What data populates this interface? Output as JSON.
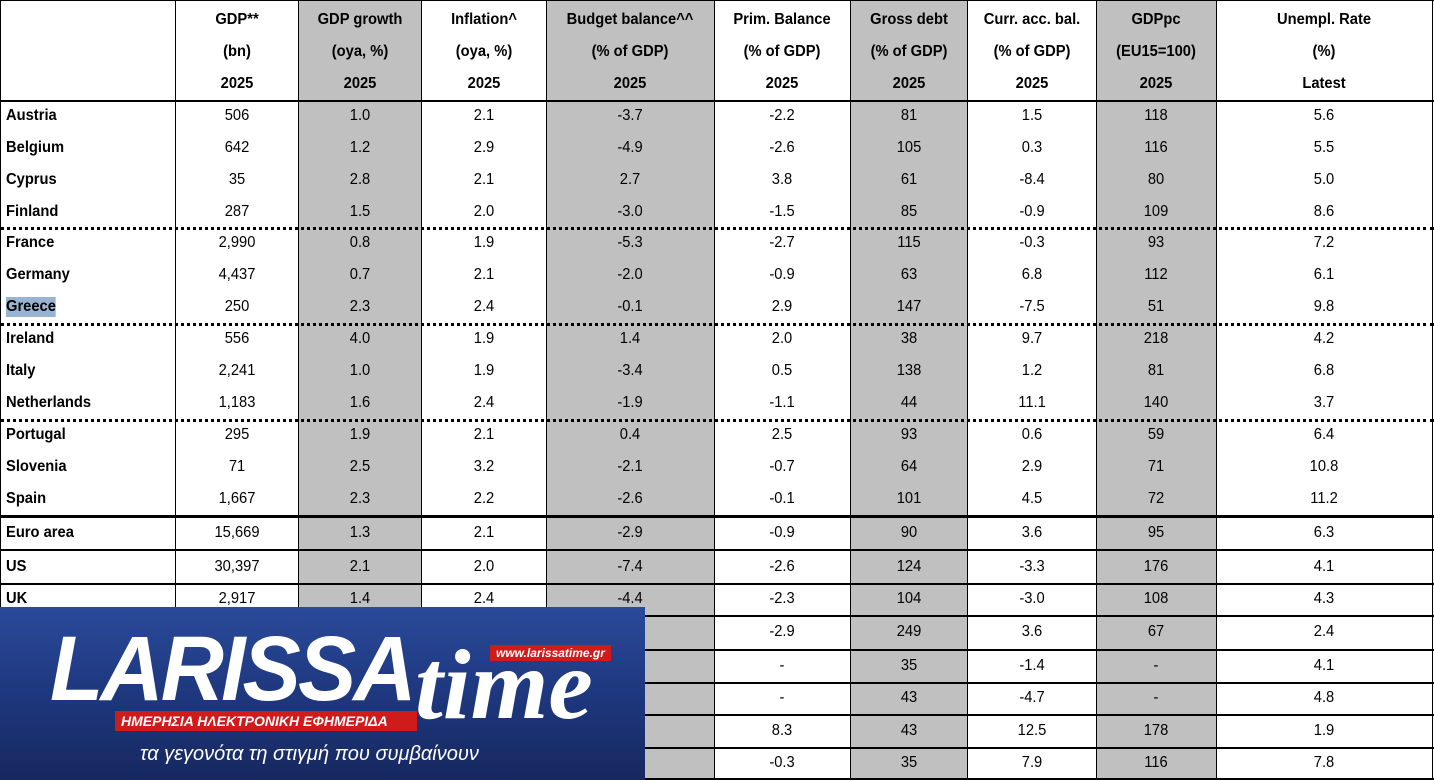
{
  "table": {
    "header": [
      [
        "",
        "GDP**",
        "GDP growth",
        "Inflation^",
        "Budget balance^^",
        "Prim. Balance",
        "Gross debt",
        "Curr. acc. bal.",
        "GDPpc",
        "Unempl. Rate"
      ],
      [
        "",
        "(bn)",
        "(oya, %)",
        "(oya, %)",
        "(% of GDP)",
        "(% of GDP)",
        "(% of GDP)",
        "(% of GDP)",
        "(EU15=100)",
        "(%)"
      ],
      [
        "",
        "2025",
        "2025",
        "2025",
        "2025",
        "2025",
        "2025",
        "2025",
        "2025",
        "Latest"
      ]
    ],
    "rows": [
      [
        "Austria",
        "506",
        "1.0",
        "2.1",
        "-3.7",
        "-2.2",
        "81",
        "1.5",
        "118",
        "5.6"
      ],
      [
        "Belgium",
        "642",
        "1.2",
        "2.9",
        "-4.9",
        "-2.6",
        "105",
        "0.3",
        "116",
        "5.5"
      ],
      [
        "Cyprus",
        "35",
        "2.8",
        "2.1",
        "2.7",
        "3.8",
        "61",
        "-8.4",
        "80",
        "5.0"
      ],
      [
        "Finland",
        "287",
        "1.5",
        "2.0",
        "-3.0",
        "-1.5",
        "85",
        "-0.9",
        "109",
        "8.6"
      ],
      [
        "France",
        "2,990",
        "0.8",
        "1.9",
        "-5.3",
        "-2.7",
        "115",
        "-0.3",
        "93",
        "7.2"
      ],
      [
        "Germany",
        "4,437",
        "0.7",
        "2.1",
        "-2.0",
        "-0.9",
        "63",
        "6.8",
        "112",
        "6.1"
      ],
      [
        "Greece",
        "250",
        "2.3",
        "2.4",
        "-0.1",
        "2.9",
        "147",
        "-7.5",
        "51",
        "9.8"
      ],
      [
        "Ireland",
        "556",
        "4.0",
        "1.9",
        "1.4",
        "2.0",
        "38",
        "9.7",
        "218",
        "4.2"
      ],
      [
        "Italy",
        "2,241",
        "1.0",
        "1.9",
        "-3.4",
        "0.5",
        "138",
        "1.2",
        "81",
        "6.8"
      ],
      [
        "Netherlands",
        "1,183",
        "1.6",
        "2.4",
        "-1.9",
        "-1.1",
        "44",
        "11.1",
        "140",
        "3.7"
      ],
      [
        "Portugal",
        "295",
        "1.9",
        "2.1",
        "0.4",
        "2.5",
        "93",
        "0.6",
        "59",
        "6.4"
      ],
      [
        "Slovenia",
        "71",
        "2.5",
        "3.2",
        "-2.1",
        "-0.7",
        "64",
        "2.9",
        "71",
        "10.8"
      ],
      [
        "Spain",
        "1,667",
        "2.3",
        "2.2",
        "-2.6",
        "-0.1",
        "101",
        "4.5",
        "72",
        "11.2"
      ],
      [
        "Euro area",
        "15,669",
        "1.3",
        "2.1",
        "-2.9",
        "-0.9",
        "90",
        "3.6",
        "95",
        "6.3"
      ],
      [
        "US",
        "30,397",
        "2.1",
        "2.0",
        "-7.4",
        "-2.6",
        "124",
        "-3.3",
        "176",
        "4.1"
      ],
      [
        "UK",
        "2,917",
        "1.4",
        "2.4",
        "-4.4",
        "-2.3",
        "104",
        "-3.0",
        "108",
        "4.3"
      ],
      [
        null,
        null,
        null,
        null,
        null,
        "-2.9",
        "249",
        "3.6",
        "67",
        "2.4"
      ],
      [
        null,
        null,
        null,
        null,
        null,
        "-",
        "35",
        "-1.4",
        "-",
        "4.1"
      ],
      [
        null,
        null,
        null,
        null,
        null,
        "-",
        "43",
        "-4.7",
        "-",
        "4.8"
      ],
      [
        null,
        null,
        null,
        null,
        null,
        "8.3",
        "43",
        "12.5",
        "178",
        "1.9"
      ],
      [
        null,
        null,
        null,
        null,
        null,
        "-0.3",
        "35",
        "7.9",
        "116",
        "7.8"
      ]
    ]
  },
  "logo": {
    "brand": "LARISSA",
    "brand2": "time",
    "url": "www.larissatime.gr",
    "banner": "ΗΜΕΡΗΣΙΑ ΗΛΕΚΤΡΟΝΙΚΗ ΕΦΗΜΕΡΙΔΑ",
    "tagline": "τα γεγονότα τη στιγμή που συμβαίνουν"
  }
}
